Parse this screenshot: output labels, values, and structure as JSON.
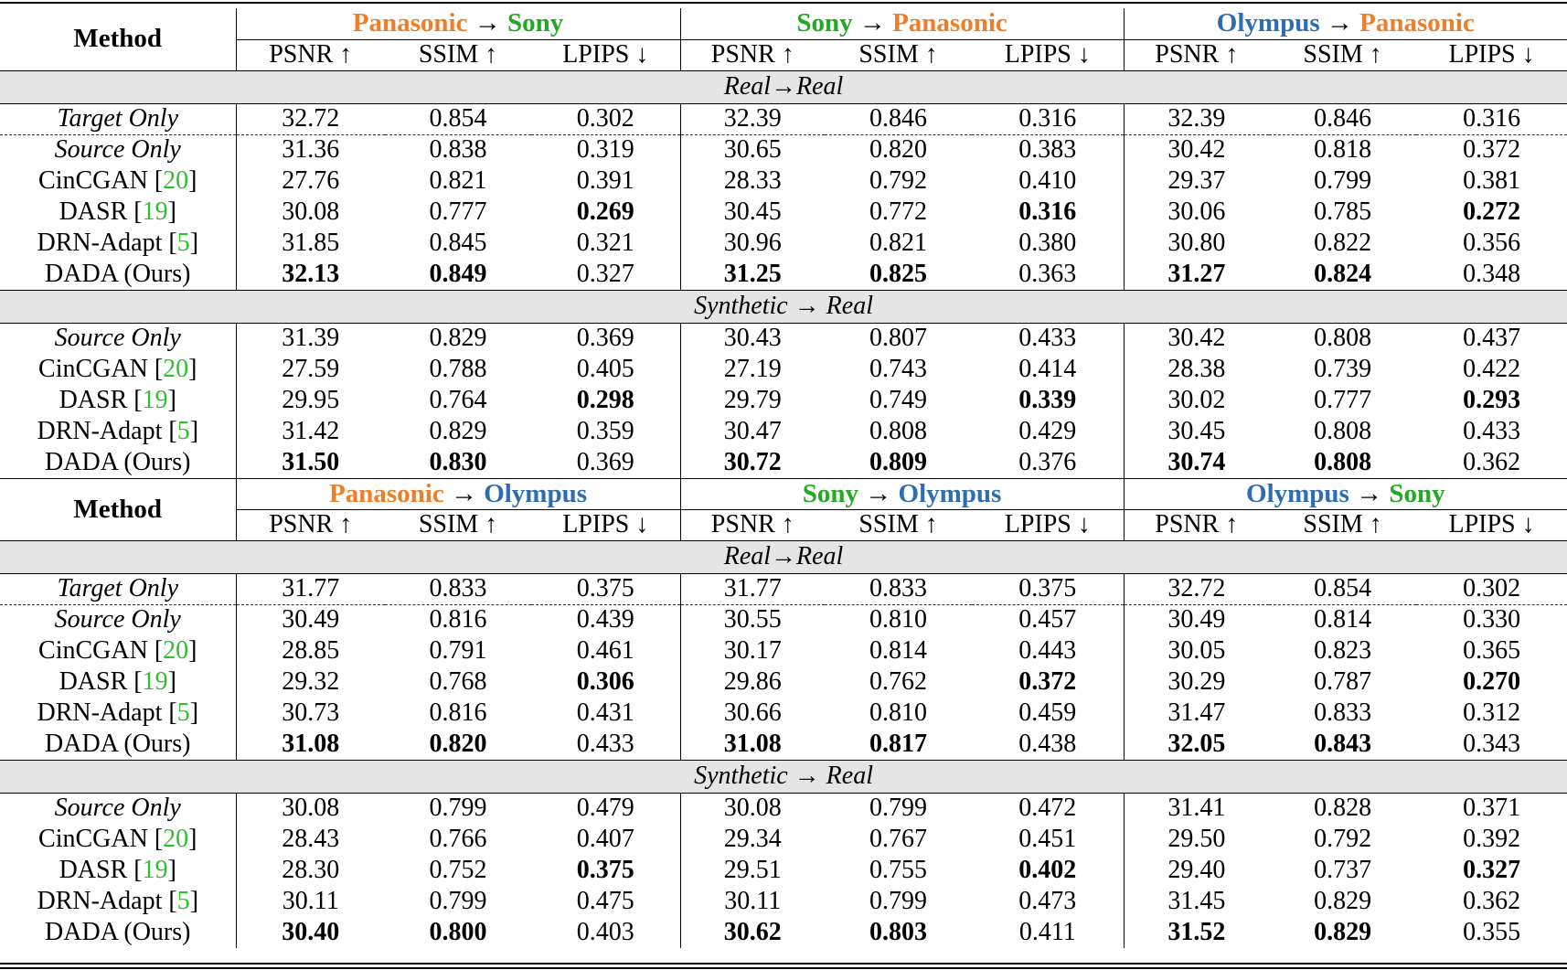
{
  "header_labels": {
    "method": "Method",
    "metrics": [
      "PSNR ↑",
      "SSIM ↑",
      "LPIPS ↓"
    ],
    "arrow": "→"
  },
  "colors": {
    "Panasonic": "#ee7f2a",
    "Sony": "#22aa22",
    "Olympus": "#2f6db3",
    "citation": "#2fbf2f",
    "section_bg": "#e5e5e5"
  },
  "blocks": [
    {
      "groups": [
        {
          "from": "Panasonic",
          "to": "Sony"
        },
        {
          "from": "Sony",
          "to": "Panasonic"
        },
        {
          "from": "Olympus",
          "to": "Panasonic"
        }
      ],
      "sections": [
        {
          "label": "Real→Real",
          "rows": [
            {
              "method": "Target Only",
              "italic": true,
              "dashed": true,
              "values": [
                "32.72",
                "0.854",
                "0.302",
                "32.39",
                "0.846",
                "0.316",
                "32.39",
                "0.846",
                "0.316"
              ],
              "bold": []
            },
            {
              "method": "Source Only",
              "italic": true,
              "values": [
                "31.36",
                "0.838",
                "0.319",
                "30.65",
                "0.820",
                "0.383",
                "30.42",
                "0.818",
                "0.372"
              ],
              "bold": []
            },
            {
              "method": "CinCGAN",
              "cite": "20",
              "values": [
                "27.76",
                "0.821",
                "0.391",
                "28.33",
                "0.792",
                "0.410",
                "29.37",
                "0.799",
                "0.381"
              ],
              "bold": []
            },
            {
              "method": "DASR",
              "cite": "19",
              "values": [
                "30.08",
                "0.777",
                "0.269",
                "30.45",
                "0.772",
                "0.316",
                "30.06",
                "0.785",
                "0.272"
              ],
              "bold": [
                2,
                5,
                8
              ]
            },
            {
              "method": "DRN-Adapt",
              "cite": "5",
              "values": [
                "31.85",
                "0.845",
                "0.321",
                "30.96",
                "0.821",
                "0.380",
                "30.80",
                "0.822",
                "0.356"
              ],
              "bold": []
            },
            {
              "method": "DADA (Ours)",
              "values": [
                "32.13",
                "0.849",
                "0.327",
                "31.25",
                "0.825",
                "0.363",
                "31.27",
                "0.824",
                "0.348"
              ],
              "bold": [
                0,
                1,
                3,
                4,
                6,
                7
              ]
            }
          ]
        },
        {
          "label": "Synthetic → Real",
          "rows": [
            {
              "method": "Source Only",
              "italic": true,
              "values": [
                "31.39",
                "0.829",
                "0.369",
                "30.43",
                "0.807",
                "0.433",
                "30.42",
                "0.808",
                "0.437"
              ],
              "bold": []
            },
            {
              "method": "CinCGAN",
              "cite": "20",
              "values": [
                "27.59",
                "0.788",
                "0.405",
                "27.19",
                "0.743",
                "0.414",
                "28.38",
                "0.739",
                "0.422"
              ],
              "bold": []
            },
            {
              "method": "DASR",
              "cite": "19",
              "values": [
                "29.95",
                "0.764",
                "0.298",
                "29.79",
                "0.749",
                "0.339",
                "30.02",
                "0.777",
                "0.293"
              ],
              "bold": [
                2,
                5,
                8
              ]
            },
            {
              "method": "DRN-Adapt",
              "cite": "5",
              "values": [
                "31.42",
                "0.829",
                "0.359",
                "30.47",
                "0.808",
                "0.429",
                "30.45",
                "0.808",
                "0.433"
              ],
              "bold": []
            },
            {
              "method": "DADA (Ours)",
              "values": [
                "31.50",
                "0.830",
                "0.369",
                "30.72",
                "0.809",
                "0.376",
                "30.74",
                "0.808",
                "0.362"
              ],
              "bold": [
                0,
                1,
                3,
                4,
                6,
                7
              ]
            }
          ]
        }
      ]
    },
    {
      "groups": [
        {
          "from": "Panasonic",
          "to": "Olympus"
        },
        {
          "from": "Sony",
          "to": "Olympus"
        },
        {
          "from": "Olympus",
          "to": "Sony"
        }
      ],
      "sections": [
        {
          "label": "Real→Real",
          "rows": [
            {
              "method": "Target Only",
              "italic": true,
              "dashed": true,
              "values": [
                "31.77",
                "0.833",
                "0.375",
                "31.77",
                "0.833",
                "0.375",
                "32.72",
                "0.854",
                "0.302"
              ],
              "bold": []
            },
            {
              "method": "Source Only",
              "italic": true,
              "values": [
                "30.49",
                "0.816",
                "0.439",
                "30.55",
                "0.810",
                "0.457",
                "30.49",
                "0.814",
                "0.330"
              ],
              "bold": []
            },
            {
              "method": "CinCGAN",
              "cite": "20",
              "values": [
                "28.85",
                "0.791",
                "0.461",
                "30.17",
                "0.814",
                "0.443",
                "30.05",
                "0.823",
                "0.365"
              ],
              "bold": []
            },
            {
              "method": "DASR",
              "cite": "19",
              "values": [
                "29.32",
                "0.768",
                "0.306",
                "29.86",
                "0.762",
                "0.372",
                "30.29",
                "0.787",
                "0.270"
              ],
              "bold": [
                2,
                5,
                8
              ]
            },
            {
              "method": "DRN-Adapt",
              "cite": "5",
              "values": [
                "30.73",
                "0.816",
                "0.431",
                "30.66",
                "0.810",
                "0.459",
                "31.47",
                "0.833",
                "0.312"
              ],
              "bold": []
            },
            {
              "method": "DADA (Ours)",
              "values": [
                "31.08",
                "0.820",
                "0.433",
                "31.08",
                "0.817",
                "0.438",
                "32.05",
                "0.843",
                "0.343"
              ],
              "bold": [
                0,
                1,
                3,
                4,
                6,
                7
              ]
            }
          ]
        },
        {
          "label": "Synthetic → Real",
          "rows": [
            {
              "method": "Source Only",
              "italic": true,
              "values": [
                "30.08",
                "0.799",
                "0.479",
                "30.08",
                "0.799",
                "0.472",
                "31.41",
                "0.828",
                "0.371"
              ],
              "bold": []
            },
            {
              "method": "CinCGAN",
              "cite": "20",
              "values": [
                "28.43",
                "0.766",
                "0.407",
                "29.34",
                "0.767",
                "0.451",
                "29.50",
                "0.792",
                "0.392"
              ],
              "bold": []
            },
            {
              "method": "DASR",
              "cite": "19",
              "values": [
                "28.30",
                "0.752",
                "0.375",
                "29.51",
                "0.755",
                "0.402",
                "29.40",
                "0.737",
                "0.327"
              ],
              "bold": [
                2,
                5,
                8
              ]
            },
            {
              "method": "DRN-Adapt",
              "cite": "5",
              "values": [
                "30.11",
                "0.799",
                "0.475",
                "30.11",
                "0.799",
                "0.473",
                "31.45",
                "0.829",
                "0.362"
              ],
              "bold": []
            },
            {
              "method": "DADA (Ours)",
              "values": [
                "30.40",
                "0.800",
                "0.403",
                "30.62",
                "0.803",
                "0.411",
                "31.52",
                "0.829",
                "0.355"
              ],
              "bold": [
                0,
                1,
                3,
                4,
                6,
                7
              ]
            }
          ]
        }
      ]
    }
  ]
}
